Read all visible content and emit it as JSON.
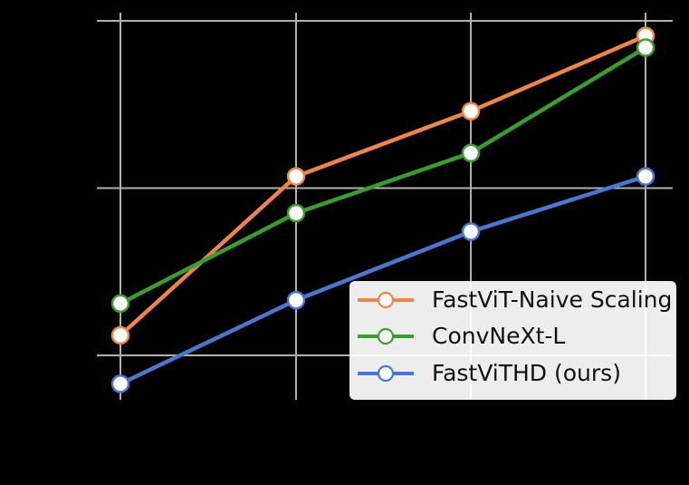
{
  "chart_data": {
    "type": "line",
    "title": "",
    "xlabel": "",
    "ylabel": "",
    "x": [
      0,
      1,
      2,
      3
    ],
    "categories": [
      "",
      "",
      "",
      ""
    ],
    "y_gridlines": [
      0,
      1,
      2
    ],
    "ylim": [
      -0.25,
      2.05
    ],
    "grid": true,
    "legend_position": "lower right",
    "note": "Axis tick labels are not visible (rendered black on black); y-values are expressed in grid units (bottom gridline = 0, middle = 1, top = 2).",
    "series": [
      {
        "name": "FastViT-Naive Scaling",
        "color": "#ee854a",
        "values": [
          0.12,
          1.07,
          1.46,
          1.91
        ]
      },
      {
        "name": "ConvNeXt-L",
        "color": "#3a9e2e",
        "values": [
          0.31,
          0.85,
          1.21,
          1.84
        ]
      },
      {
        "name": "FastViTHD (ours)",
        "color": "#4878d0",
        "values": [
          -0.17,
          0.33,
          0.74,
          1.07
        ]
      }
    ]
  },
  "legend": {
    "items": [
      {
        "label": "FastViT-Naive Scaling",
        "color": "#ee854a"
      },
      {
        "label": "ConvNeXt-L",
        "color": "#3a9e2e"
      },
      {
        "label": "FastViTHD (ours)",
        "color": "#4878d0"
      }
    ]
  },
  "colors": {
    "background": "#000000",
    "grid": "#b0b0b0",
    "marker_fill": "#ffffff"
  }
}
